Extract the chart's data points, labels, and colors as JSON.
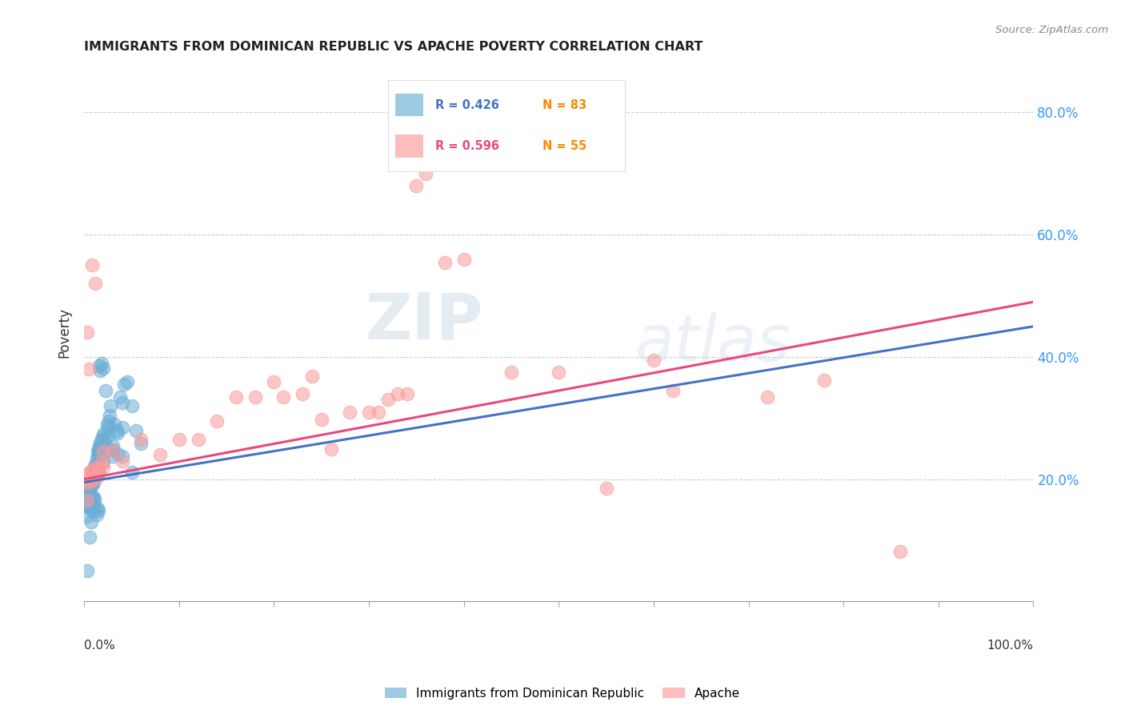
{
  "title": "IMMIGRANTS FROM DOMINICAN REPUBLIC VS APACHE POVERTY CORRELATION CHART",
  "source": "Source: ZipAtlas.com",
  "ylabel": "Poverty",
  "legend_entry1": {
    "label": "Immigrants from Dominican Republic",
    "R": 0.426,
    "N": 83,
    "color": "#6baed6"
  },
  "legend_entry2": {
    "label": "Apache",
    "R": 0.596,
    "N": 55,
    "color": "#fb9a99"
  },
  "watermark_zip": "ZIP",
  "watermark_atlas": "atlas",
  "blue_line_color": "#4472c4",
  "pink_line_color": "#e8497a",
  "background_color": "#ffffff",
  "grid_color": "#c8c8c8",
  "xlim": [
    0.0,
    1.0
  ],
  "ylim": [
    0.0,
    0.88
  ],
  "y_ticks": [
    0.0,
    0.2,
    0.4,
    0.6,
    0.8
  ],
  "y_tick_labels_right": [
    "",
    "20.0%",
    "40.0%",
    "60.0%",
    "80.0%"
  ],
  "blue_trend_x": [
    0.0,
    1.0
  ],
  "blue_trend_y": [
    0.195,
    0.45
  ],
  "pink_trend_x": [
    0.0,
    1.0
  ],
  "pink_trend_y": [
    0.2,
    0.49
  ],
  "blue_scatter_x": [
    0.002,
    0.003,
    0.003,
    0.004,
    0.005,
    0.005,
    0.006,
    0.006,
    0.007,
    0.007,
    0.008,
    0.008,
    0.009,
    0.009,
    0.01,
    0.01,
    0.011,
    0.011,
    0.012,
    0.012,
    0.013,
    0.013,
    0.014,
    0.015,
    0.015,
    0.016,
    0.016,
    0.017,
    0.017,
    0.018,
    0.018,
    0.019,
    0.02,
    0.021,
    0.022,
    0.023,
    0.024,
    0.025,
    0.026,
    0.027,
    0.028,
    0.03,
    0.032,
    0.034,
    0.035,
    0.038,
    0.04,
    0.042,
    0.045,
    0.05,
    0.002,
    0.003,
    0.004,
    0.005,
    0.006,
    0.007,
    0.008,
    0.009,
    0.01,
    0.011,
    0.012,
    0.013,
    0.014,
    0.015,
    0.016,
    0.017,
    0.018,
    0.02,
    0.025,
    0.03,
    0.035,
    0.04,
    0.05,
    0.055,
    0.06,
    0.007,
    0.008,
    0.01,
    0.015,
    0.02,
    0.025,
    0.03,
    0.04
  ],
  "blue_scatter_y": [
    0.175,
    0.155,
    0.165,
    0.155,
    0.185,
    0.175,
    0.17,
    0.185,
    0.195,
    0.175,
    0.19,
    0.195,
    0.21,
    0.2,
    0.215,
    0.195,
    0.215,
    0.22,
    0.225,
    0.215,
    0.235,
    0.215,
    0.245,
    0.24,
    0.25,
    0.245,
    0.255,
    0.25,
    0.26,
    0.265,
    0.255,
    0.27,
    0.26,
    0.275,
    0.265,
    0.345,
    0.29,
    0.285,
    0.295,
    0.305,
    0.32,
    0.255,
    0.29,
    0.28,
    0.275,
    0.335,
    0.325,
    0.355,
    0.36,
    0.32,
    0.14,
    0.05,
    0.16,
    0.158,
    0.105,
    0.162,
    0.148,
    0.172,
    0.162,
    0.168,
    0.152,
    0.142,
    0.152,
    0.148,
    0.385,
    0.378,
    0.39,
    0.382,
    0.272,
    0.238,
    0.242,
    0.238,
    0.212,
    0.28,
    0.258,
    0.13,
    0.152,
    0.165,
    0.235,
    0.228,
    0.248,
    0.248,
    0.285
  ],
  "pink_scatter_x": [
    0.002,
    0.003,
    0.004,
    0.005,
    0.006,
    0.007,
    0.008,
    0.009,
    0.01,
    0.011,
    0.012,
    0.013,
    0.014,
    0.015,
    0.016,
    0.018,
    0.02,
    0.003,
    0.005,
    0.008,
    0.012,
    0.02,
    0.03,
    0.04,
    0.06,
    0.08,
    0.1,
    0.12,
    0.14,
    0.16,
    0.18,
    0.2,
    0.21,
    0.23,
    0.24,
    0.25,
    0.26,
    0.28,
    0.3,
    0.31,
    0.32,
    0.33,
    0.34,
    0.35,
    0.36,
    0.38,
    0.4,
    0.45,
    0.5,
    0.55,
    0.6,
    0.62,
    0.72,
    0.78,
    0.86
  ],
  "pink_scatter_y": [
    0.2,
    0.165,
    0.21,
    0.195,
    0.21,
    0.198,
    0.215,
    0.21,
    0.21,
    0.218,
    0.212,
    0.202,
    0.212,
    0.218,
    0.212,
    0.228,
    0.22,
    0.44,
    0.38,
    0.55,
    0.52,
    0.245,
    0.247,
    0.23,
    0.265,
    0.24,
    0.265,
    0.265,
    0.295,
    0.335,
    0.335,
    0.36,
    0.335,
    0.34,
    0.368,
    0.298,
    0.25,
    0.31,
    0.31,
    0.31,
    0.33,
    0.34,
    0.34,
    0.68,
    0.7,
    0.555,
    0.56,
    0.375,
    0.375,
    0.185,
    0.395,
    0.345,
    0.335,
    0.362,
    0.082
  ]
}
